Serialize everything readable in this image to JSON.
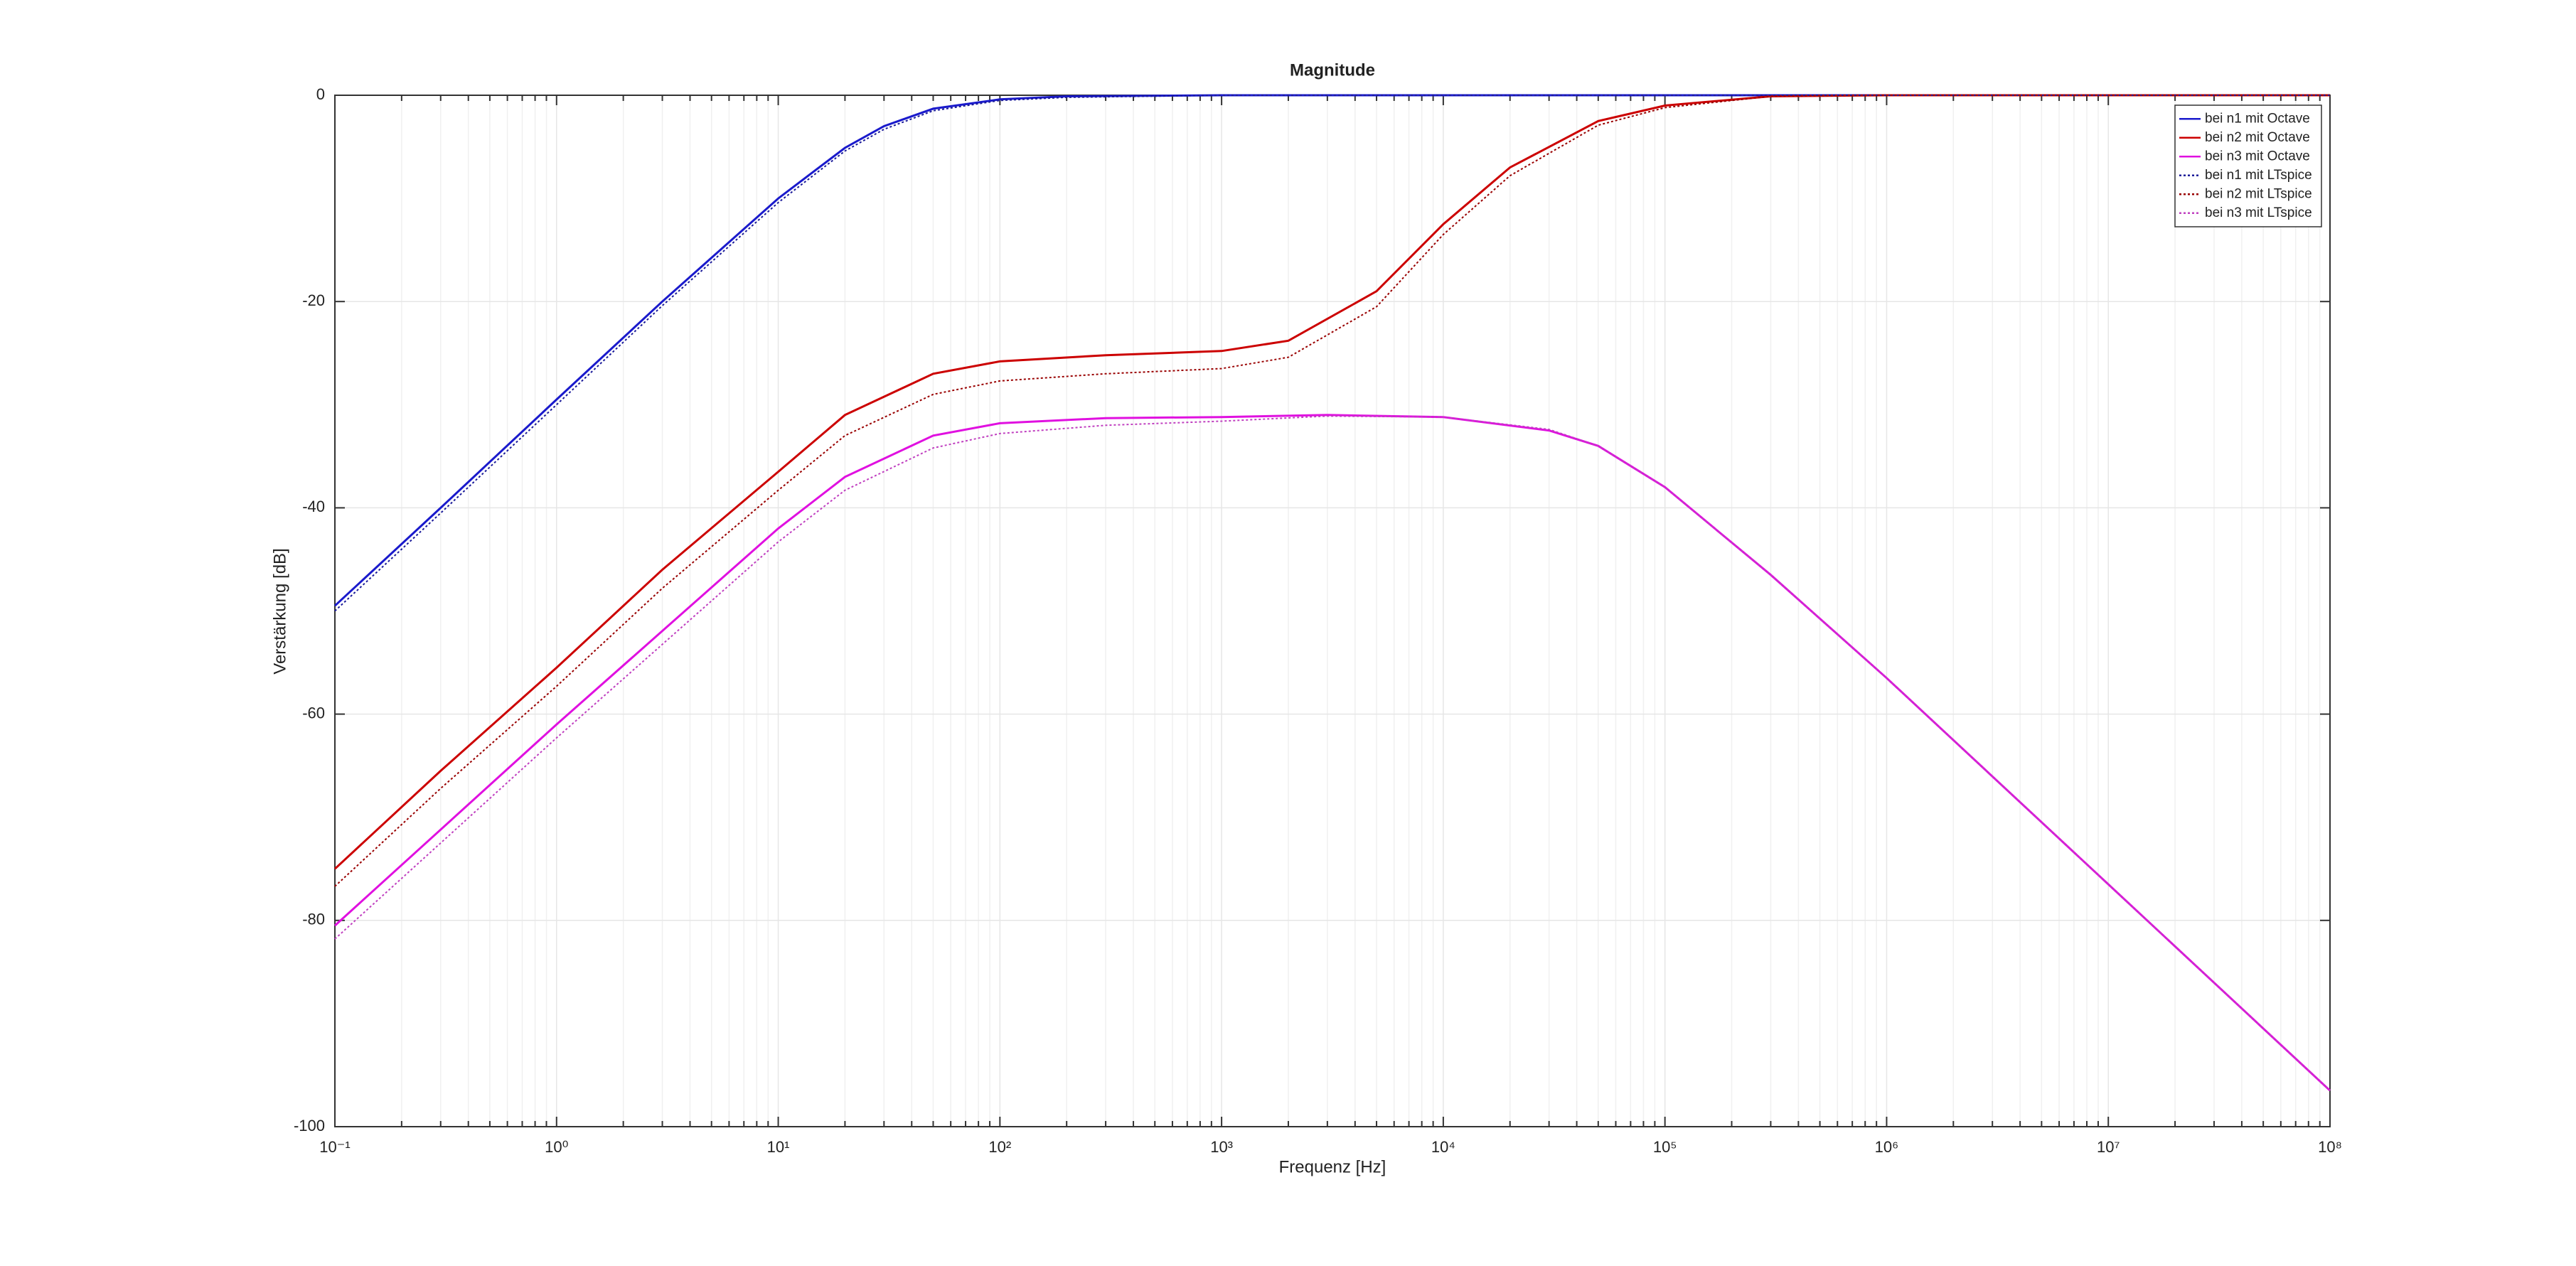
{
  "chart_data": {
    "type": "line",
    "title": "Magnitude",
    "xlabel": "Frequenz [Hz]",
    "ylabel": "Verstärkung [dB]",
    "xscale": "log",
    "grid": true,
    "legend": "upper right",
    "xlim": [
      0.1,
      100000000
    ],
    "ylim": [
      -100,
      0
    ],
    "xticks": [
      {
        "value": 0.1,
        "label": "10⁻¹"
      },
      {
        "value": 1,
        "label": "10⁰"
      },
      {
        "value": 10,
        "label": "10¹"
      },
      {
        "value": 100,
        "label": "10²"
      },
      {
        "value": 1000,
        "label": "10³"
      },
      {
        "value": 10000,
        "label": "10⁴"
      },
      {
        "value": 100000,
        "label": "10⁵"
      },
      {
        "value": 1000000,
        "label": "10⁶"
      },
      {
        "value": 10000000,
        "label": "10⁷"
      },
      {
        "value": 100000000,
        "label": "10⁸"
      }
    ],
    "yticks": [
      -100,
      -80,
      -60,
      -40,
      -20,
      0
    ],
    "series": [
      {
        "name": "bei n1 mit Octave",
        "color": "#1a1acc",
        "linestyle": "solid",
        "x": [
          0.1,
          0.3,
          1,
          3,
          10,
          20,
          30,
          50,
          100,
          200,
          1000,
          100000000
        ],
        "values": [
          -49.5,
          -40,
          -29.5,
          -20,
          -10,
          -5.1,
          -3,
          -1.3,
          -0.4,
          -0.1,
          0,
          0
        ]
      },
      {
        "name": "bei n2 mit Octave",
        "color": "#cc0000",
        "linestyle": "solid",
        "x": [
          0.1,
          0.3,
          1,
          3,
          10,
          20,
          50,
          100,
          300,
          1000,
          2000,
          5000,
          10000,
          20000,
          50000,
          100000,
          300000,
          1000000,
          100000000
        ],
        "values": [
          -75,
          -65.5,
          -55.5,
          -46,
          -36.5,
          -31,
          -27,
          -25.8,
          -25.2,
          -24.8,
          -23.8,
          -19,
          -12.5,
          -7,
          -2.5,
          -1,
          -0.1,
          0,
          0
        ]
      },
      {
        "name": "bei n3 mit Octave",
        "color": "#e010e0",
        "linestyle": "solid",
        "x": [
          0.1,
          1,
          10,
          20,
          50,
          100,
          300,
          1000,
          3000,
          10000,
          30000,
          50000,
          100000,
          300000,
          1000000,
          10000000,
          100000000
        ],
        "values": [
          -80.5,
          -61,
          -42,
          -37,
          -33,
          -31.8,
          -31.3,
          -31.2,
          -31,
          -31.2,
          -32.5,
          -34,
          -38,
          -46.5,
          -56.5,
          -76.5,
          -96.5
        ]
      },
      {
        "name": "bei n1 mit LTspice",
        "color": "#1a1a99",
        "linestyle": "dotted",
        "x": [
          0.1,
          0.3,
          1,
          3,
          10,
          20,
          30,
          50,
          100,
          200,
          1000,
          100000000
        ],
        "values": [
          -50,
          -40.5,
          -30,
          -20.4,
          -10.4,
          -5.4,
          -3.3,
          -1.5,
          -0.5,
          -0.2,
          0,
          0
        ]
      },
      {
        "name": "bei n2 mit LTspice",
        "color": "#990000",
        "linestyle": "dotted",
        "x": [
          0.1,
          0.3,
          1,
          3,
          10,
          20,
          50,
          100,
          300,
          1000,
          2000,
          5000,
          10000,
          20000,
          50000,
          100000,
          300000,
          1000000,
          100000000
        ],
        "values": [
          -76.7,
          -67.2,
          -57.3,
          -47.8,
          -38.3,
          -33,
          -29,
          -27.7,
          -27,
          -26.5,
          -25.4,
          -20.5,
          -13.5,
          -7.8,
          -2.9,
          -1.2,
          -0.1,
          0,
          0
        ]
      },
      {
        "name": "bei n3 mit LTspice",
        "color": "#c040c0",
        "linestyle": "dotted",
        "x": [
          0.1,
          1,
          10,
          20,
          50,
          100,
          300,
          1000,
          3000,
          10000,
          30000,
          50000,
          100000,
          300000,
          1000000,
          10000000,
          100000000
        ],
        "values": [
          -81.8,
          -62.3,
          -43.3,
          -38.3,
          -34.2,
          -32.8,
          -32,
          -31.6,
          -31.1,
          -31.2,
          -32.4,
          -34,
          -38,
          -46.5,
          -56.5,
          -76.5,
          -96.5
        ]
      }
    ]
  }
}
